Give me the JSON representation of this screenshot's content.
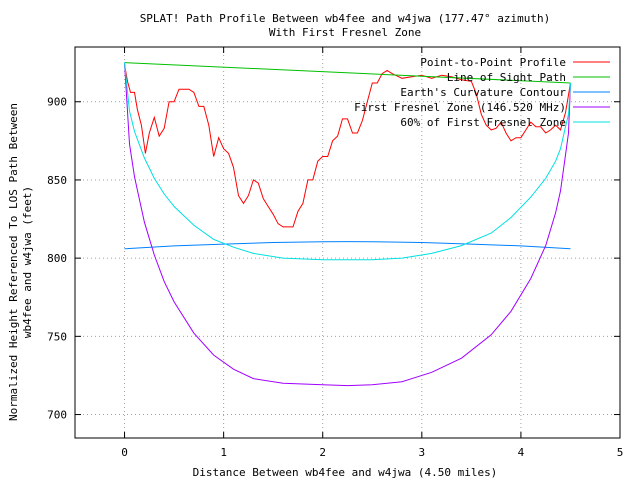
{
  "chart_data": {
    "type": "line",
    "title": "SPLAT! Path Profile Between wb4fee and w4jwa (177.47° azimuth)",
    "subtitle": "With First Fresnel Zone",
    "xlabel": "Distance Between wb4fee and w4jwa (4.50 miles)",
    "ylabel_line1": "Normalized Height Referenced To LOS Path Between",
    "ylabel_line2": "wb4fee and w4jwa (feet)",
    "xlim": [
      -0.5,
      5
    ],
    "ylim": [
      685,
      935
    ],
    "xticks": [
      0,
      1,
      2,
      3,
      4,
      5
    ],
    "yticks": [
      700,
      750,
      800,
      850,
      900
    ],
    "grid": true,
    "legend_position": "top-right",
    "series": [
      {
        "name": "Point-to-Point Profile",
        "color": "#ff0000",
        "points": [
          [
            0.0,
            924
          ],
          [
            0.03,
            913
          ],
          [
            0.06,
            906
          ],
          [
            0.1,
            906
          ],
          [
            0.13,
            895
          ],
          [
            0.17,
            885
          ],
          [
            0.21,
            867
          ],
          [
            0.25,
            880
          ],
          [
            0.3,
            890
          ],
          [
            0.35,
            878
          ],
          [
            0.4,
            883
          ],
          [
            0.45,
            900
          ],
          [
            0.5,
            900
          ],
          [
            0.55,
            908
          ],
          [
            0.6,
            908
          ],
          [
            0.65,
            908
          ],
          [
            0.7,
            906
          ],
          [
            0.75,
            897
          ],
          [
            0.8,
            897
          ],
          [
            0.85,
            885
          ],
          [
            0.9,
            865
          ],
          [
            0.95,
            877
          ],
          [
            1.0,
            870
          ],
          [
            1.05,
            867
          ],
          [
            1.1,
            858
          ],
          [
            1.15,
            840
          ],
          [
            1.2,
            835
          ],
          [
            1.25,
            840
          ],
          [
            1.3,
            850
          ],
          [
            1.35,
            848
          ],
          [
            1.4,
            838
          ],
          [
            1.45,
            833
          ],
          [
            1.5,
            828
          ],
          [
            1.55,
            822
          ],
          [
            1.6,
            820
          ],
          [
            1.65,
            820
          ],
          [
            1.7,
            820
          ],
          [
            1.75,
            830
          ],
          [
            1.8,
            835
          ],
          [
            1.85,
            850
          ],
          [
            1.9,
            850
          ],
          [
            1.95,
            862
          ],
          [
            2.0,
            865
          ],
          [
            2.05,
            865
          ],
          [
            2.1,
            875
          ],
          [
            2.15,
            878
          ],
          [
            2.2,
            889
          ],
          [
            2.25,
            889
          ],
          [
            2.3,
            880
          ],
          [
            2.35,
            880
          ],
          [
            2.4,
            888
          ],
          [
            2.45,
            900
          ],
          [
            2.5,
            912
          ],
          [
            2.55,
            912
          ],
          [
            2.6,
            918
          ],
          [
            2.65,
            920
          ],
          [
            2.7,
            918
          ],
          [
            2.8,
            915
          ],
          [
            2.9,
            916
          ],
          [
            3.0,
            917
          ],
          [
            3.1,
            915
          ],
          [
            3.2,
            917
          ],
          [
            3.3,
            916
          ],
          [
            3.4,
            914
          ],
          [
            3.5,
            913
          ],
          [
            3.55,
            905
          ],
          [
            3.6,
            892
          ],
          [
            3.65,
            885
          ],
          [
            3.7,
            882
          ],
          [
            3.75,
            883
          ],
          [
            3.8,
            887
          ],
          [
            3.85,
            880
          ],
          [
            3.9,
            875
          ],
          [
            3.95,
            877
          ],
          [
            4.0,
            877
          ],
          [
            4.05,
            882
          ],
          [
            4.1,
            887
          ],
          [
            4.15,
            884
          ],
          [
            4.2,
            884
          ],
          [
            4.25,
            880
          ],
          [
            4.3,
            882
          ],
          [
            4.35,
            885
          ],
          [
            4.4,
            882
          ],
          [
            4.45,
            893
          ],
          [
            4.5,
            912
          ]
        ]
      },
      {
        "name": "Line of Sight Path",
        "color": "#00c000",
        "points": [
          [
            0.0,
            925
          ],
          [
            4.5,
            912
          ]
        ]
      },
      {
        "name": "Earth's Curvature Contour",
        "color": "#0080ff",
        "points": [
          [
            0.0,
            806
          ],
          [
            0.5,
            807.8
          ],
          [
            1.0,
            809.0
          ],
          [
            1.5,
            810.0
          ],
          [
            2.0,
            810.5
          ],
          [
            2.25,
            810.6
          ],
          [
            2.5,
            810.5
          ],
          [
            3.0,
            810.0
          ],
          [
            3.5,
            809.0
          ],
          [
            4.0,
            807.8
          ],
          [
            4.5,
            806
          ]
        ]
      },
      {
        "name": "First Fresnel Zone (146.520 MHz)",
        "color": "#a000ff",
        "points": [
          [
            0.0,
            925
          ],
          [
            0.05,
            873
          ],
          [
            0.1,
            852
          ],
          [
            0.2,
            823
          ],
          [
            0.3,
            802
          ],
          [
            0.4,
            785
          ],
          [
            0.5,
            772
          ],
          [
            0.7,
            752
          ],
          [
            0.9,
            738
          ],
          [
            1.1,
            729
          ],
          [
            1.3,
            723
          ],
          [
            1.6,
            720
          ],
          [
            2.0,
            719
          ],
          [
            2.25,
            718.5
          ],
          [
            2.5,
            719
          ],
          [
            2.8,
            721
          ],
          [
            3.1,
            727
          ],
          [
            3.4,
            736
          ],
          [
            3.7,
            751
          ],
          [
            3.9,
            766
          ],
          [
            4.1,
            787
          ],
          [
            4.25,
            808
          ],
          [
            4.35,
            829
          ],
          [
            4.4,
            843
          ],
          [
            4.45,
            866
          ],
          [
            4.48,
            880
          ],
          [
            4.5,
            912
          ]
        ]
      },
      {
        "name": "60% of First Fresnel Zone",
        "color": "#00e0e0",
        "points": [
          [
            0.0,
            925
          ],
          [
            0.05,
            894
          ],
          [
            0.1,
            881
          ],
          [
            0.2,
            864
          ],
          [
            0.3,
            851
          ],
          [
            0.4,
            841
          ],
          [
            0.5,
            833
          ],
          [
            0.7,
            821
          ],
          [
            0.9,
            812
          ],
          [
            1.1,
            807
          ],
          [
            1.3,
            803
          ],
          [
            1.6,
            800
          ],
          [
            2.0,
            799
          ],
          [
            2.25,
            799
          ],
          [
            2.5,
            799
          ],
          [
            2.8,
            800
          ],
          [
            3.1,
            803
          ],
          [
            3.4,
            808
          ],
          [
            3.7,
            816
          ],
          [
            3.9,
            826
          ],
          [
            4.1,
            839
          ],
          [
            4.25,
            851
          ],
          [
            4.35,
            862
          ],
          [
            4.4,
            870
          ],
          [
            4.45,
            884
          ],
          [
            4.48,
            892
          ],
          [
            4.5,
            912
          ]
        ]
      }
    ]
  }
}
